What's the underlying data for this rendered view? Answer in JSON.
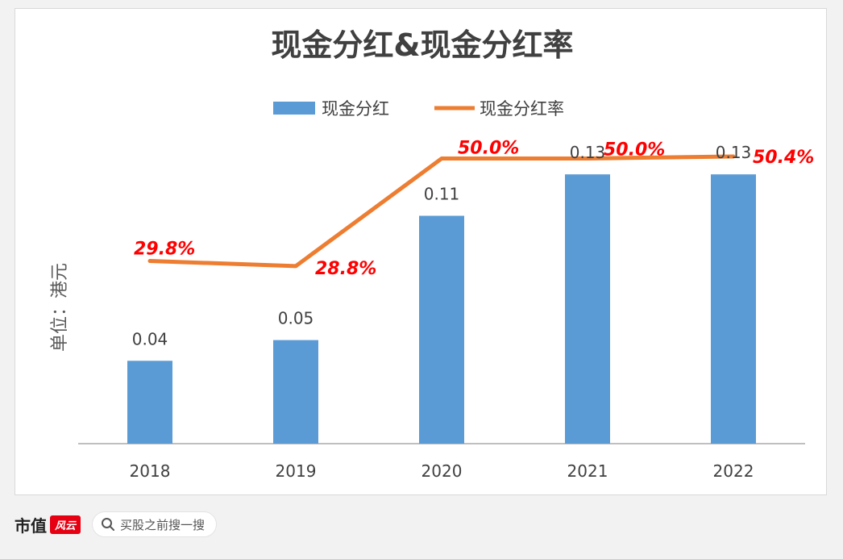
{
  "chart_data": {
    "type": "bar",
    "title": "现金分红&现金分红率",
    "ylabel": "单位：港元",
    "categories": [
      "2018",
      "2019",
      "2020",
      "2021",
      "2022"
    ],
    "series": [
      {
        "name": "现金分红",
        "type": "bar",
        "color": "#5b9bd5",
        "values": [
          0.04,
          0.05,
          0.11,
          0.13,
          0.13
        ],
        "labels": [
          "0.04",
          "0.05",
          "0.11",
          "0.13",
          "0.13"
        ]
      },
      {
        "name": "现金分红率",
        "type": "line",
        "color": "#ed7d31",
        "label_color": "#ff0000",
        "values": [
          29.8,
          28.8,
          50.0,
          50.0,
          50.4
        ],
        "labels": [
          "29.8%",
          "28.8%",
          "50.0%",
          "50.0%",
          "50.4%"
        ]
      }
    ],
    "grid": false,
    "legend_position": "top-center"
  },
  "footer": {
    "brand_name": "市值",
    "brand_badge": "风云",
    "search_placeholder": "买股之前搜一搜"
  }
}
